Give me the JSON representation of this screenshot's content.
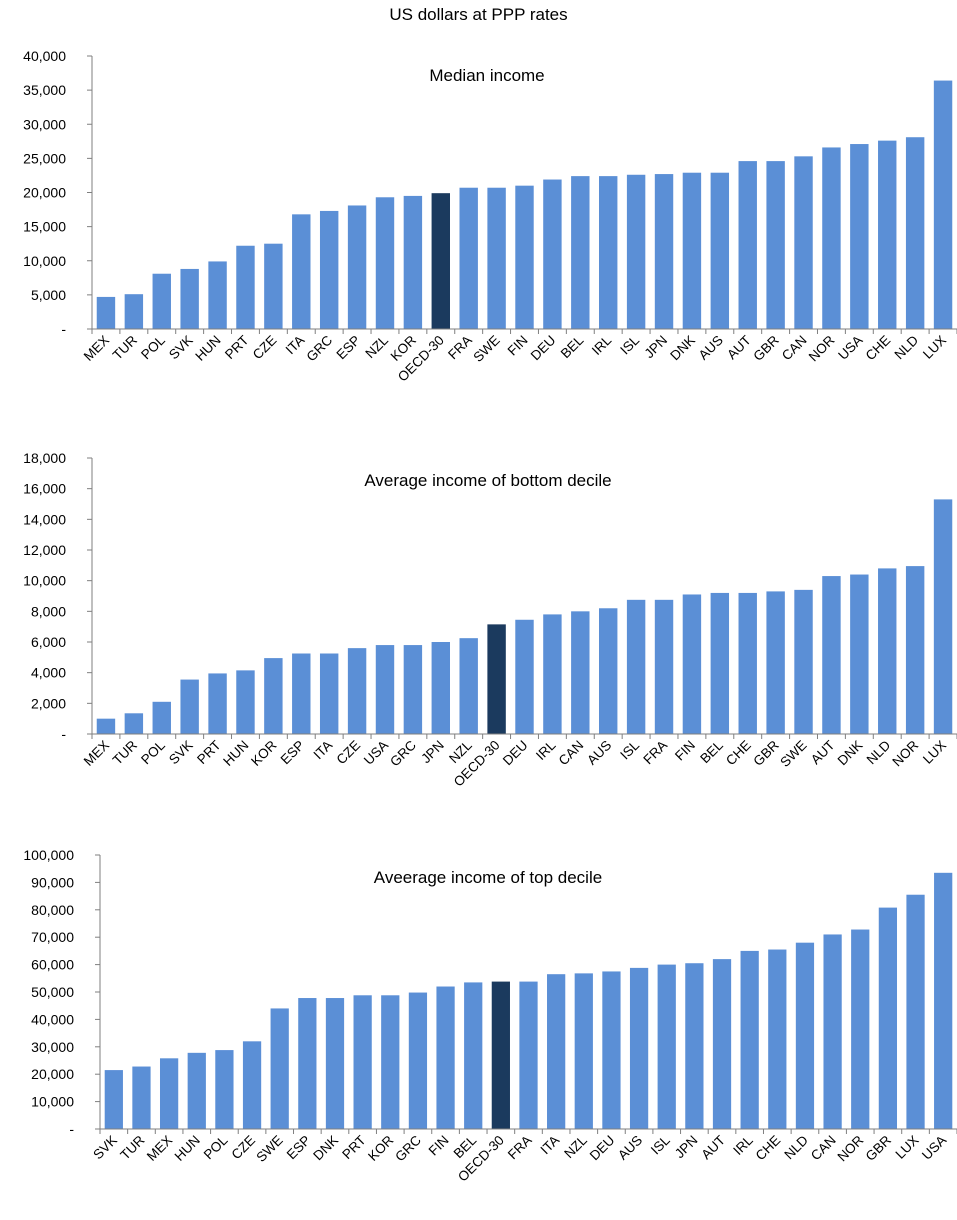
{
  "page_title": "US dollars at PPP rates",
  "colors": {
    "bar": "#5B8FD6",
    "highlight": "#1B3A5E",
    "axis": "#7F7F7F"
  },
  "chart_data": [
    {
      "type": "bar",
      "title": "Median income",
      "xlabel": "",
      "ylabel": "",
      "ylim": [
        0,
        40000
      ],
      "yticks": [
        0,
        5000,
        10000,
        15000,
        20000,
        25000,
        30000,
        35000,
        40000
      ],
      "ytick_labels": [
        "-",
        "5,000",
        "10,000",
        "15,000",
        "20,000",
        "25,000",
        "30,000",
        "35,000",
        "40,000"
      ],
      "highlight": "OECD-30",
      "grid": false,
      "categories": [
        "MEX",
        "TUR",
        "POL",
        "SVK",
        "HUN",
        "PRT",
        "CZE",
        "ITA",
        "GRC",
        "ESP",
        "NZL",
        "KOR",
        "OECD-30",
        "FRA",
        "SWE",
        "FIN",
        "DEU",
        "BEL",
        "IRL",
        "ISL",
        "JPN",
        "DNK",
        "AUS",
        "AUT",
        "GBR",
        "CAN",
        "NOR",
        "USA",
        "CHE",
        "NLD",
        "LUX"
      ],
      "values": [
        4700,
        5100,
        8100,
        8800,
        9900,
        12200,
        12500,
        16800,
        17300,
        18100,
        19300,
        19500,
        19900,
        20700,
        20700,
        21000,
        21900,
        22400,
        22400,
        22600,
        22700,
        22900,
        22900,
        24600,
        24600,
        25300,
        26600,
        27100,
        27600,
        28100,
        36400
      ]
    },
    {
      "type": "bar",
      "title": "Average income  of bottom decile",
      "xlabel": "",
      "ylabel": "",
      "ylim": [
        0,
        18000
      ],
      "yticks": [
        0,
        2000,
        4000,
        6000,
        8000,
        10000,
        12000,
        14000,
        16000,
        18000
      ],
      "ytick_labels": [
        "-",
        "2,000",
        "4,000",
        "6,000",
        "8,000",
        "10,000",
        "12,000",
        "14,000",
        "16,000",
        "18,000"
      ],
      "highlight": "OECD-30",
      "grid": false,
      "categories": [
        "MEX",
        "TUR",
        "POL",
        "SVK",
        "PRT",
        "HUN",
        "KOR",
        "ESP",
        "ITA",
        "CZE",
        "USA",
        "GRC",
        "JPN",
        "NZL",
        "OECD-30",
        "DEU",
        "IRL",
        "CAN",
        "AUS",
        "ISL",
        "FRA",
        "FIN",
        "BEL",
        "CHE",
        "GBR",
        "SWE",
        "AUT",
        "DNK",
        "NLD",
        "NOR",
        "LUX"
      ],
      "values": [
        1000,
        1350,
        2100,
        3550,
        3950,
        4150,
        4950,
        5250,
        5250,
        5600,
        5800,
        5800,
        6000,
        6250,
        7150,
        7450,
        7800,
        8000,
        8200,
        8750,
        8750,
        9100,
        9200,
        9200,
        9300,
        9400,
        10300,
        10400,
        10800,
        10950,
        15300
      ]
    },
    {
      "type": "bar",
      "title": "Aveerage income  of top decile",
      "xlabel": "",
      "ylabel": "",
      "ylim": [
        0,
        100000
      ],
      "yticks": [
        0,
        10000,
        20000,
        30000,
        40000,
        50000,
        60000,
        70000,
        80000,
        90000,
        100000
      ],
      "ytick_labels": [
        "-",
        "10,000",
        "20,000",
        "30,000",
        "40,000",
        "50,000",
        "60,000",
        "70,000",
        "80,000",
        "90,000",
        "100,000"
      ],
      "highlight": "OECD-30",
      "grid": false,
      "categories": [
        "SVK",
        "TUR",
        "MEX",
        "HUN",
        "POL",
        "CZE",
        "SWE",
        "ESP",
        "DNK",
        "PRT",
        "KOR",
        "GRC",
        "FIN",
        "BEL",
        "OECD-30",
        "FRA",
        "ITA",
        "NZL",
        "DEU",
        "AUS",
        "ISL",
        "JPN",
        "AUT",
        "IRL",
        "CHE",
        "NLD",
        "CAN",
        "NOR",
        "GBR",
        "LUX",
        "USA"
      ],
      "values": [
        21500,
        22800,
        25800,
        27800,
        28800,
        32000,
        44000,
        47800,
        47800,
        48800,
        48800,
        49800,
        52000,
        53500,
        53800,
        53800,
        56500,
        56800,
        57500,
        58800,
        60000,
        60500,
        62000,
        65000,
        65500,
        68000,
        71000,
        72800,
        80800,
        85500,
        93500
      ]
    }
  ]
}
